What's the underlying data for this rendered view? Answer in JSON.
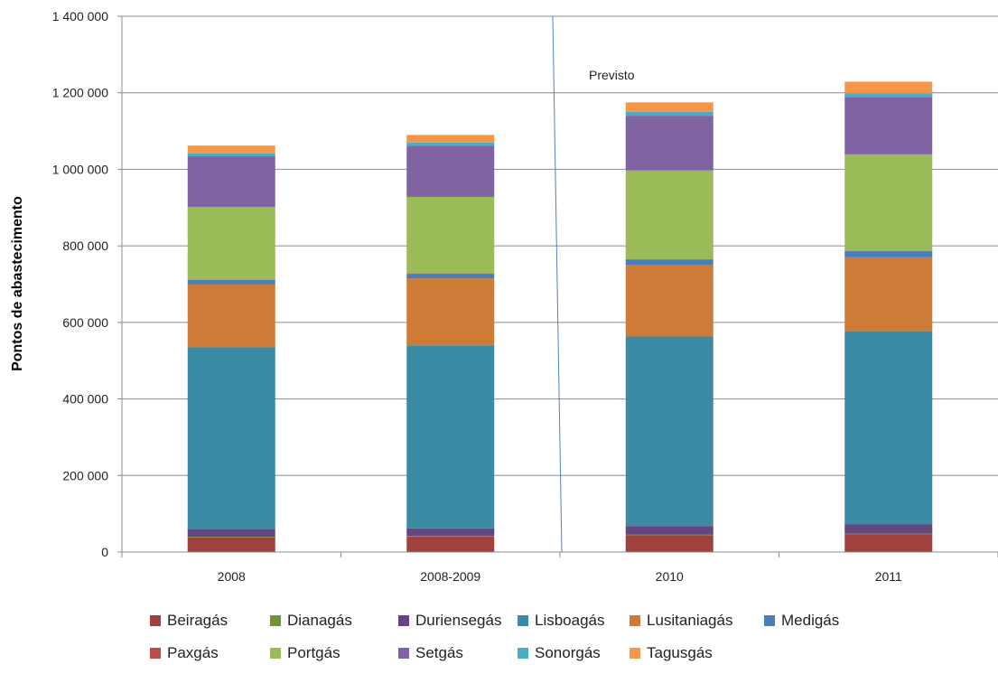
{
  "chart_data": {
    "type": "bar",
    "stacked": true,
    "title": "",
    "xlabel": "",
    "ylabel": "Pontos de abastecimento",
    "ylim": [
      0,
      1400000
    ],
    "yticks": [
      "0",
      "200 000",
      "400 000",
      "600 000",
      "800 000",
      "1 000 000",
      "1 200 000",
      "1 400 000"
    ],
    "ytick_values": [
      0,
      200000,
      400000,
      600000,
      800000,
      1000000,
      1200000,
      1400000
    ],
    "categories": [
      "2008",
      "2008-2009",
      "2010",
      "2011"
    ],
    "annotation": "Previsto",
    "grid": true,
    "legend_position": "bottom",
    "series": [
      {
        "name": "Beiragás",
        "color": "#A0413E",
        "values": [
          38000,
          40000,
          44000,
          46000
        ]
      },
      {
        "name": "Dianagás",
        "color": "#74923A",
        "values": [
          2000,
          2000,
          2000,
          2000
        ]
      },
      {
        "name": "Duriensegás",
        "color": "#624782",
        "values": [
          20000,
          20000,
          22000,
          24000
        ]
      },
      {
        "name": "Lisboagás",
        "color": "#3A8BA3",
        "values": [
          475000,
          478000,
          495000,
          505000
        ]
      },
      {
        "name": "Lusitaniagás",
        "color": "#CD7B37",
        "values": [
          165000,
          175000,
          187000,
          193000
        ]
      },
      {
        "name": "Medigás",
        "color": "#4A7EBB",
        "values": [
          11000,
          12000,
          14000,
          16000
        ]
      },
      {
        "name": "Paxgás",
        "color": "#BE4B48",
        "values": [
          1000,
          1000,
          1000,
          1000
        ]
      },
      {
        "name": "Portgás",
        "color": "#9BBB59",
        "values": [
          190000,
          200000,
          232000,
          252000
        ]
      },
      {
        "name": "Setgás",
        "color": "#8064A2",
        "values": [
          132000,
          134000,
          143000,
          150000
        ]
      },
      {
        "name": "Sonorgás",
        "color": "#4BACC6",
        "values": [
          8000,
          8000,
          10000,
          10000
        ]
      },
      {
        "name": "Tagusgás",
        "color": "#F79646",
        "values": [
          20000,
          20000,
          25000,
          30000
        ]
      }
    ]
  }
}
